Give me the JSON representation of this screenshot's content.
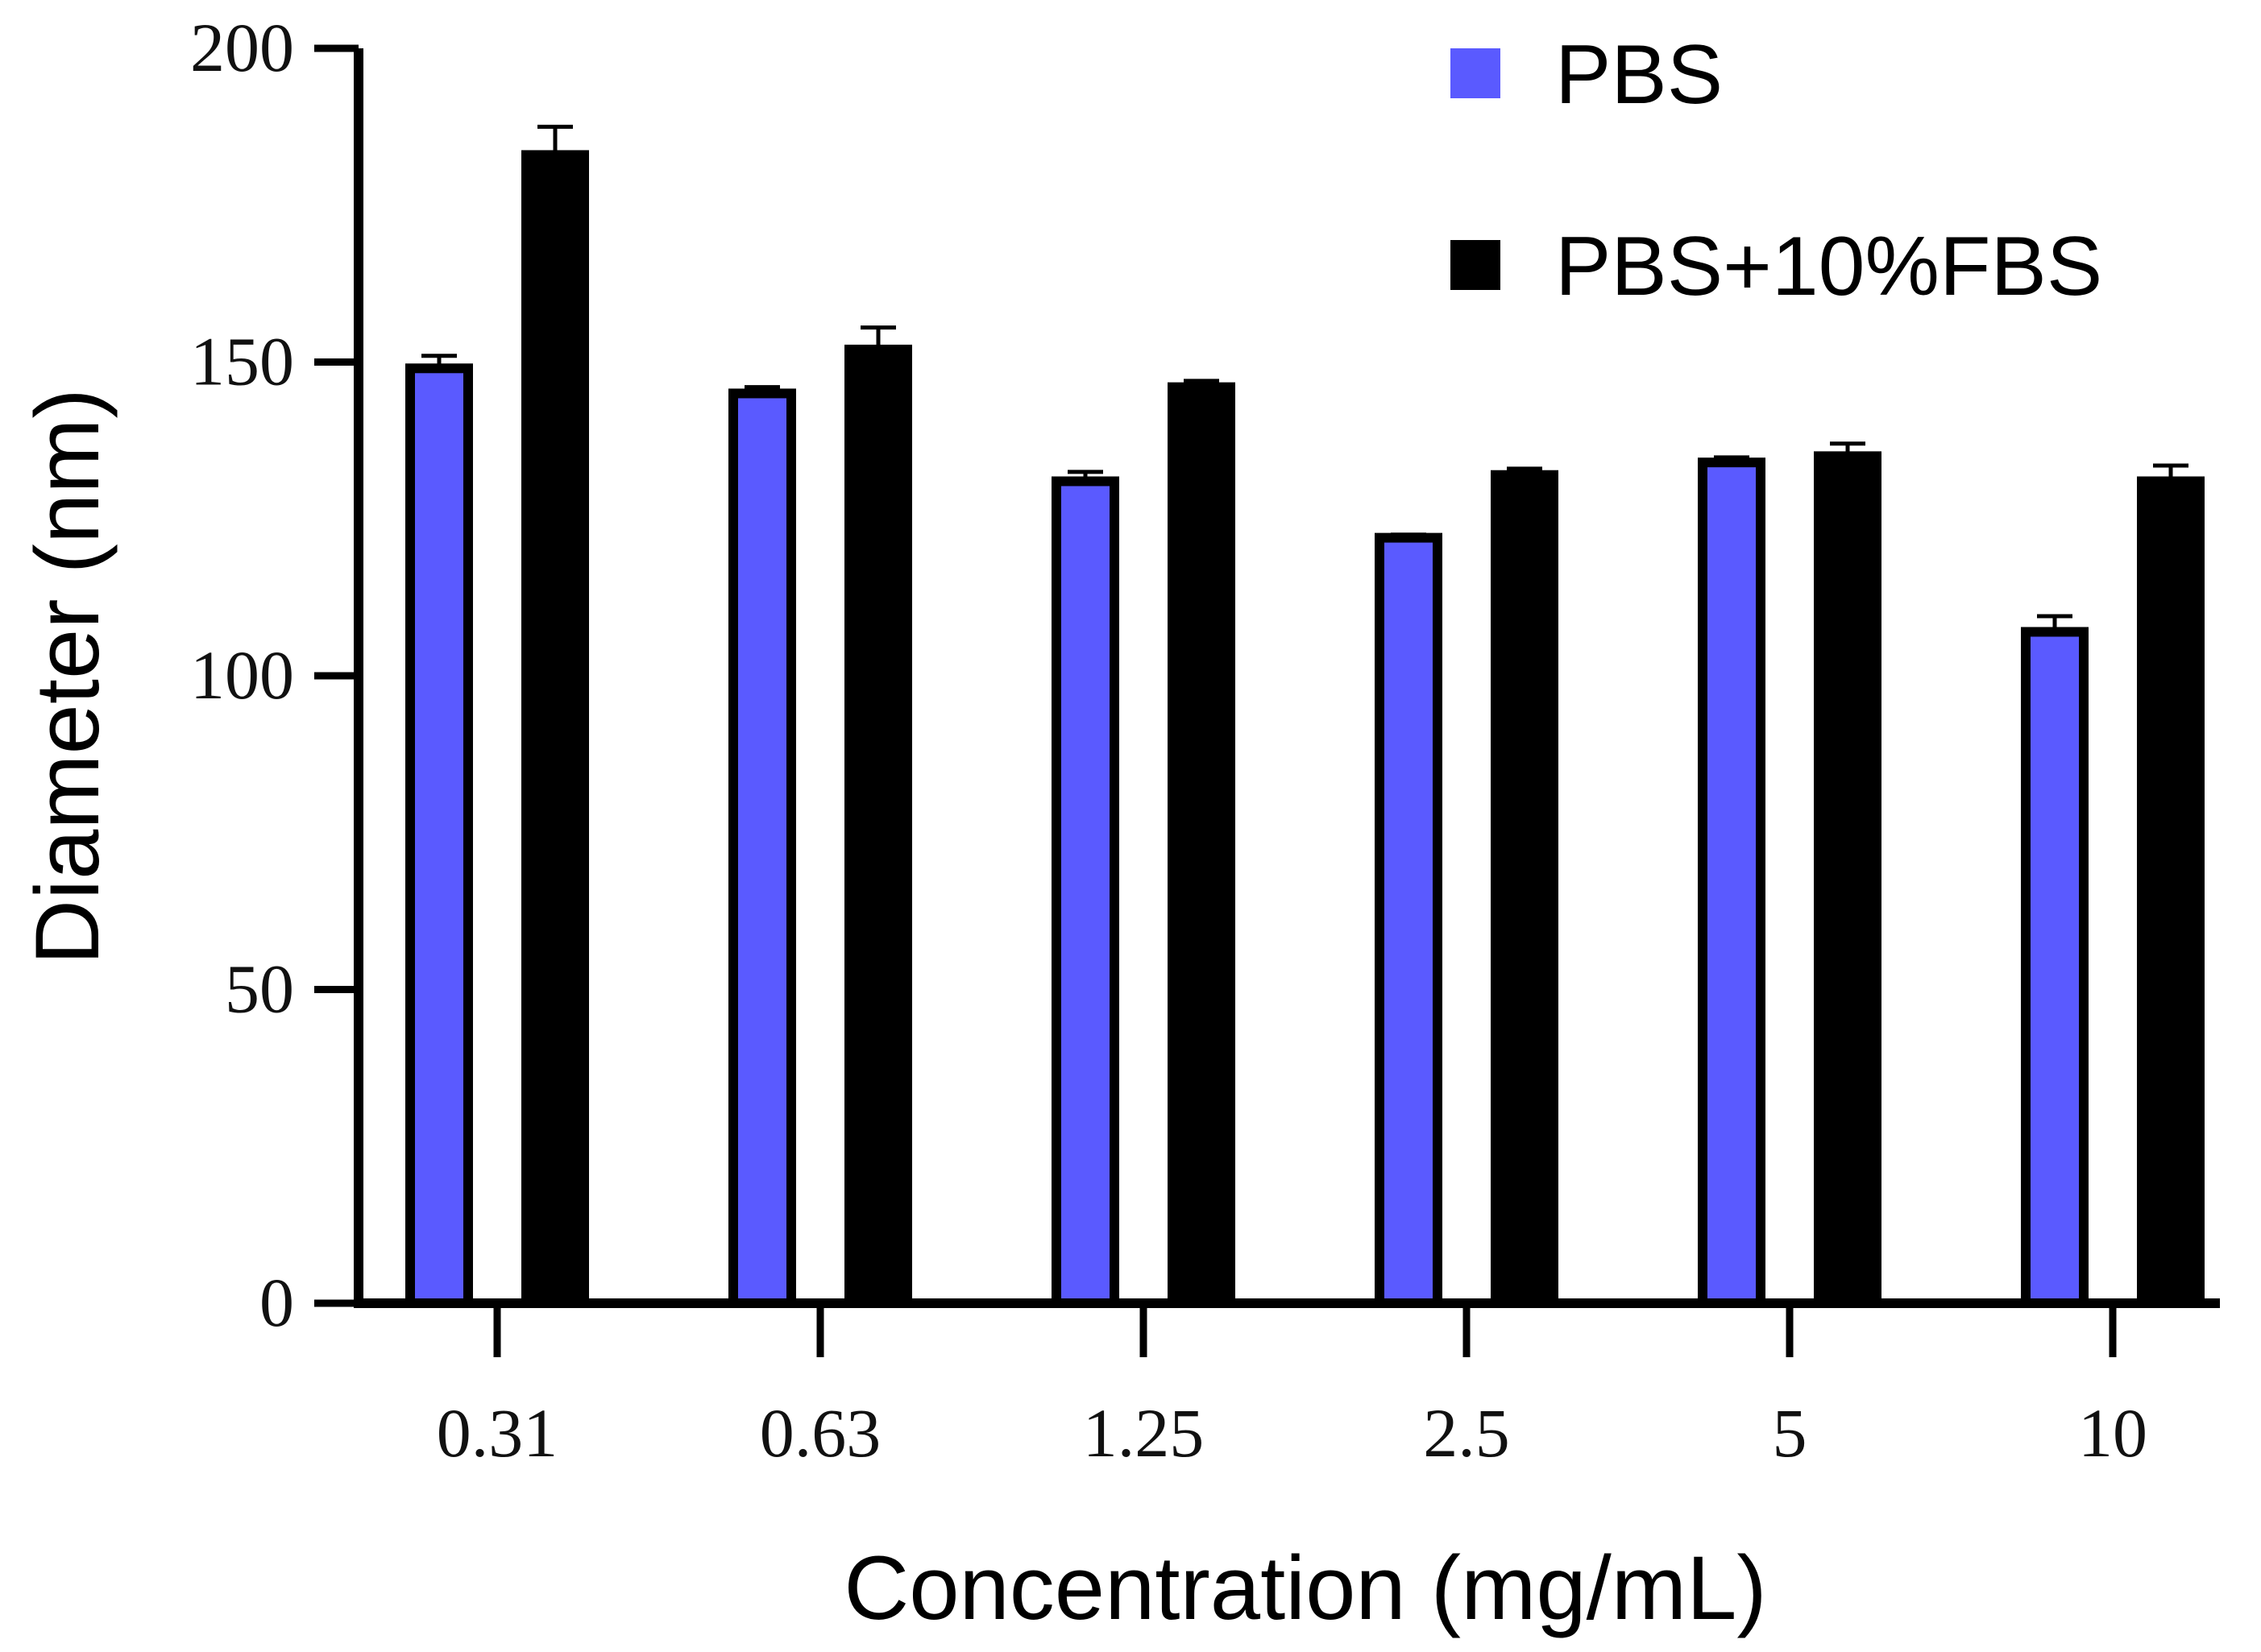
{
  "chart_data": {
    "type": "bar",
    "title": "",
    "xlabel": "Concentration (mg/mL)",
    "ylabel": "Diameter (nm)",
    "ylim": [
      0,
      200
    ],
    "yticks": [
      0,
      50,
      100,
      150,
      200
    ],
    "grid": false,
    "legend_position": "top-right",
    "categories": [
      "0.31",
      "0.63",
      "1.25",
      "2.5",
      "5",
      "10"
    ],
    "series": [
      {
        "name": "PBS",
        "color": "#5a5aff",
        "values": [
          149,
          145,
          131,
          122,
          134,
          107
        ],
        "errors": [
          2,
          1,
          1.5,
          0.5,
          0.8,
          2.5
        ]
      },
      {
        "name": "PBS+10%FBS",
        "color": "#000000",
        "values": [
          183,
          152,
          146,
          132,
          135,
          131
        ],
        "errors": [
          4.5,
          3.5,
          1,
          1,
          2,
          2.5
        ]
      }
    ]
  }
}
